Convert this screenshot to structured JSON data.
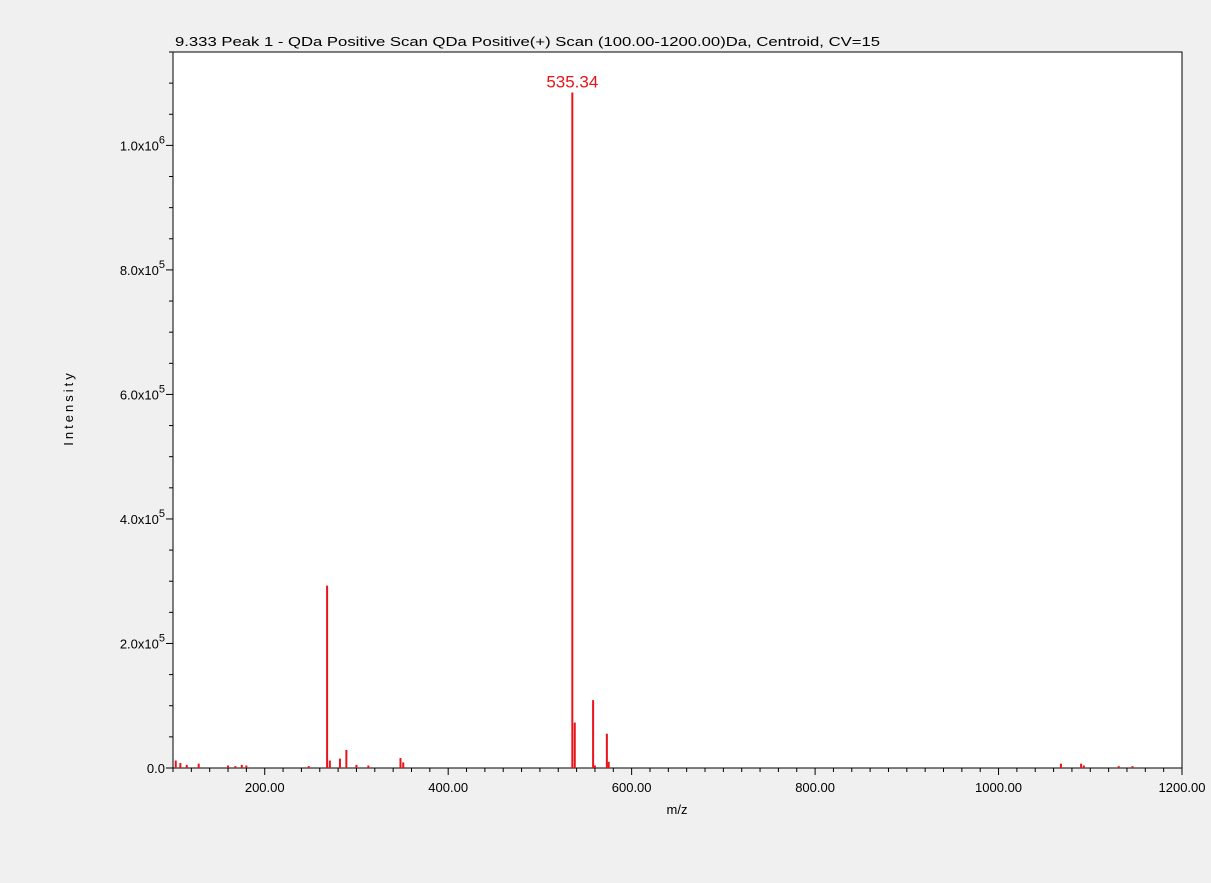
{
  "chart_data": {
    "type": "bar",
    "title": "9.333 Peak 1 - QDa Positive Scan QDa Positive(+) Scan (100.00-1200.00)Da, Centroid, CV=15",
    "xlabel": "m/z",
    "ylabel": "Intensity",
    "xlim": [
      100,
      1200
    ],
    "ylim": [
      0,
      1150000
    ],
    "x_ticks": [
      200,
      400,
      600,
      800,
      1000,
      1200
    ],
    "x_tick_labels": [
      "200.00",
      "400.00",
      "600.00",
      "800.00",
      "1000.00",
      "1200.00"
    ],
    "y_ticks": [
      0,
      200000,
      400000,
      600000,
      800000,
      1000000
    ],
    "y_tick_labels": [
      {
        "base": "0.0",
        "exp": ""
      },
      {
        "base": "2.0x10",
        "exp": "5"
      },
      {
        "base": "4.0x10",
        "exp": "5"
      },
      {
        "base": "6.0x10",
        "exp": "5"
      },
      {
        "base": "8.0x10",
        "exp": "5"
      },
      {
        "base": "1.0x10",
        "exp": "6"
      }
    ],
    "grid": false,
    "bar_color": "#e8141a",
    "peak_label": {
      "x": 535.34,
      "text": "535.34",
      "color": "#e8141a"
    },
    "peaks": [
      {
        "x": 103,
        "y": 12000
      },
      {
        "x": 108,
        "y": 8000
      },
      {
        "x": 115,
        "y": 5000
      },
      {
        "x": 128,
        "y": 7000
      },
      {
        "x": 160,
        "y": 4000
      },
      {
        "x": 168,
        "y": 3000
      },
      {
        "x": 175,
        "y": 5000
      },
      {
        "x": 180,
        "y": 4000
      },
      {
        "x": 248,
        "y": 3000
      },
      {
        "x": 268,
        "y": 293000
      },
      {
        "x": 271,
        "y": 12000
      },
      {
        "x": 282,
        "y": 15000
      },
      {
        "x": 289,
        "y": 29000
      },
      {
        "x": 300,
        "y": 5000
      },
      {
        "x": 313,
        "y": 4000
      },
      {
        "x": 348,
        "y": 16000
      },
      {
        "x": 351,
        "y": 9000
      },
      {
        "x": 535.34,
        "y": 1085000
      },
      {
        "x": 538,
        "y": 73000
      },
      {
        "x": 558,
        "y": 109000
      },
      {
        "x": 560,
        "y": 4000
      },
      {
        "x": 573,
        "y": 55000
      },
      {
        "x": 575,
        "y": 10000
      },
      {
        "x": 1068,
        "y": 7000
      },
      {
        "x": 1090,
        "y": 7000
      },
      {
        "x": 1093,
        "y": 4000
      },
      {
        "x": 1131,
        "y": 3000
      },
      {
        "x": 1146,
        "y": 3000
      }
    ]
  }
}
